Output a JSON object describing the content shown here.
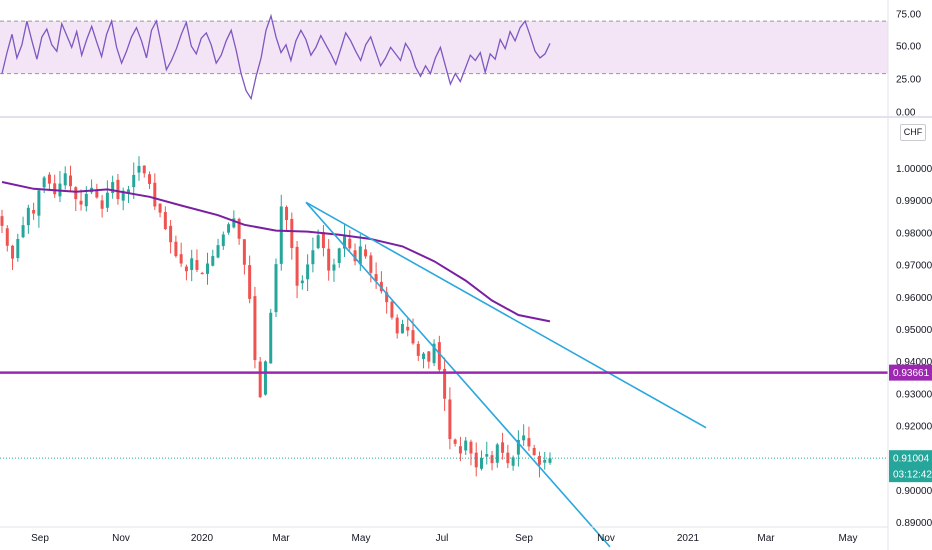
{
  "colors": {
    "up": "#26a69a",
    "down": "#ef5350",
    "rsi_line": "#7e57c2",
    "rsi_band": "#f3e5f5",
    "ma_line": "#7b1fa2",
    "trend_line": "#29a7df",
    "level_line": "#9c27b0",
    "current_price_bg": "#26a69a",
    "level_label_bg": "#9c27b0"
  },
  "currency_badge": "CHF",
  "chart_data": [
    {
      "type": "line",
      "name": "rsi_panel",
      "y_ticks": [
        "75.00",
        "50.00",
        "25.00",
        "0.00"
      ],
      "ylim": [
        0,
        80
      ],
      "band": [
        30,
        70
      ],
      "values": [
        30,
        46,
        60,
        42,
        52,
        70,
        55,
        41,
        58,
        64,
        52,
        47,
        68,
        59,
        50,
        62,
        44,
        56,
        66,
        54,
        43,
        60,
        70,
        50,
        38,
        47,
        58,
        65,
        55,
        42,
        63,
        70,
        52,
        33,
        40,
        49,
        60,
        69,
        51,
        45,
        57,
        61,
        52,
        38,
        44,
        55,
        63,
        48,
        30,
        17,
        11,
        28,
        42,
        63,
        74,
        58,
        46,
        52,
        40,
        55,
        63,
        56,
        44,
        50,
        59,
        52,
        45,
        37,
        49,
        61,
        55,
        47,
        40,
        52,
        58,
        47,
        36,
        42,
        50,
        45,
        40,
        53,
        47,
        35,
        28,
        36,
        30,
        42,
        50,
        36,
        22,
        30,
        24,
        34,
        44,
        40,
        46,
        31,
        45,
        41,
        56,
        49,
        62,
        55,
        65,
        70,
        59,
        47,
        42,
        45,
        53
      ]
    },
    {
      "type": "candlestick",
      "name": "price_panel",
      "y_ticks": [
        "1.00000",
        "0.99000",
        "0.98000",
        "0.97000",
        "0.96000",
        "0.95000",
        "0.94000",
        "0.93000",
        "0.92000",
        "0.91000",
        "0.90000",
        "0.89000"
      ],
      "ylim": [
        0.887,
        1.0065
      ],
      "x_labels": [
        "Sep",
        "Nov",
        "2020",
        "Mar",
        "May",
        "Jul",
        "Sep",
        "Nov",
        "2021",
        "Mar",
        "May"
      ],
      "closes": [
        0.9822,
        0.976,
        0.972,
        0.9781,
        0.9824,
        0.9878,
        0.986,
        0.9932,
        0.9972,
        0.9953,
        0.992,
        0.9953,
        0.9985,
        0.9945,
        0.9905,
        0.9888,
        0.9921,
        0.994,
        0.991,
        0.9875,
        0.9925,
        0.9958,
        0.9905,
        0.9931,
        0.9935,
        0.998,
        1.0008,
        0.9985,
        0.9952,
        0.9882,
        0.9863,
        0.9812,
        0.9771,
        0.9728,
        0.9705,
        0.9681,
        0.9721,
        0.9685,
        0.9672,
        0.9705,
        0.9728,
        0.9762,
        0.9795,
        0.9827,
        0.9845,
        0.9782,
        0.9701,
        0.9595,
        0.9405,
        0.929,
        0.9401,
        0.9552,
        0.9703,
        0.9882,
        0.984,
        0.9753,
        0.9636,
        0.9652,
        0.9702,
        0.9746,
        0.9793,
        0.9753,
        0.9683,
        0.9702,
        0.9752,
        0.9789,
        0.9752,
        0.9712,
        0.9758,
        0.9727,
        0.9676,
        0.965,
        0.9619,
        0.9585,
        0.9537,
        0.9488,
        0.9517,
        0.9497,
        0.9457,
        0.9418,
        0.9425,
        0.94,
        0.9456,
        0.9375,
        0.9285,
        0.916,
        0.9145,
        0.9115,
        0.9155,
        0.9115,
        0.9072,
        0.9101,
        0.9113,
        0.9085,
        0.9143,
        0.9117,
        0.9085,
        0.9103,
        0.9157,
        0.9171,
        0.9137,
        0.911,
        0.908,
        0.9095,
        0.91
      ],
      "moving_average": {
        "x_index": [
          0,
          6,
          14,
          20,
          28,
          34,
          41,
          46,
          52,
          58,
          64,
          70,
          76,
          82,
          88,
          93,
          98,
          104
        ],
        "values": [
          0.9958,
          0.9937,
          0.9928,
          0.9935,
          0.9912,
          0.9885,
          0.9855,
          0.9825,
          0.9807,
          0.9804,
          0.9794,
          0.9781,
          0.9758,
          0.9712,
          0.9652,
          0.959,
          0.9545,
          0.9525
        ]
      },
      "trendlines": [
        {
          "from": [
            "Mar",
            0.9895
          ],
          "to": [
            "Nov",
            0.8825
          ]
        },
        {
          "from": [
            "Mar",
            0.9895
          ],
          "to": [
            "2021",
            0.9195
          ]
        }
      ],
      "horizontal_level": "0.93661",
      "current_price": "0.91004",
      "countdown": "03:12:42"
    }
  ]
}
